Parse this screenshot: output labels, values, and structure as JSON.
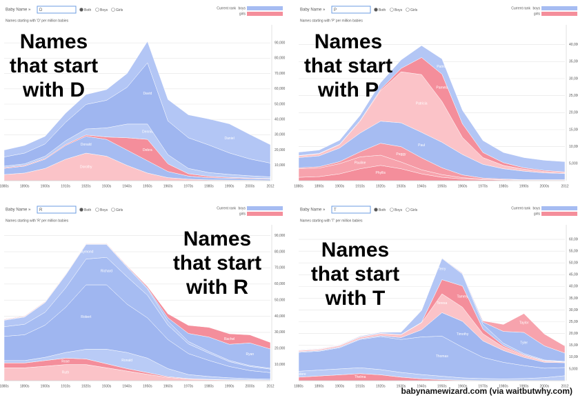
{
  "chart_data": [
    {
      "type": "stacked_area",
      "controls": {
        "label": "Baby Name »",
        "input": "D",
        "options": [
          "Both",
          "Boys",
          "Girls"
        ],
        "rank_label": "Current rank",
        "rank_rows": [
          "boys",
          "girls"
        ]
      },
      "subtitle": "Names starting with 'D' per million babies",
      "annotation": [
        "Names",
        "that start",
        "with D"
      ],
      "categories": [
        "1880s",
        "1890s",
        "1900s",
        "1910s",
        "1920s",
        "1930s",
        "1940s",
        "1950s",
        "1960s",
        "1970s",
        "1980s",
        "1990s",
        "2000s",
        "2012"
      ],
      "ylim": [
        0,
        100000
      ],
      "yticks": [
        {
          "value": 10000,
          "label": "10,000"
        },
        {
          "value": 20000,
          "label": "20,000"
        },
        {
          "value": 30000,
          "label": "30,000"
        },
        {
          "value": 40000,
          "label": "40,000"
        },
        {
          "value": 50000,
          "label": "50,000"
        },
        {
          "value": 60000,
          "label": "60,000"
        },
        {
          "value": 70000,
          "label": "70,000"
        },
        {
          "value": 80000,
          "label": "80,000"
        },
        {
          "value": 90000,
          "label": "90,000"
        }
      ],
      "grid": true,
      "series": [
        {
          "name": "Dorothy",
          "color": "#fbc3c8",
          "values": [
            4000,
            5000,
            8000,
            14000,
            18000,
            16000,
            10000,
            5000,
            2000,
            1000,
            500,
            400,
            300,
            200
          ]
        },
        {
          "name": "Donald",
          "color": "#a6bcf2",
          "values": [
            4000,
            4500,
            6000,
            9000,
            11000,
            11000,
            10000,
            8000,
            4000,
            2000,
            1500,
            1200,
            1000,
            800
          ]
        },
        {
          "name": "Debra",
          "color": "#f48e9b",
          "values": [
            500,
            500,
            500,
            600,
            800,
            1500,
            8000,
            14000,
            5000,
            1500,
            800,
            500,
            400,
            300
          ]
        },
        {
          "name": "Dennis",
          "color": "#b9cbf6",
          "values": [
            1000,
            1000,
            1500,
            2500,
            4000,
            6000,
            9000,
            10000,
            6000,
            3500,
            2500,
            2000,
            1500,
            1200
          ]
        },
        {
          "name": "David",
          "color": "#9fb6f0",
          "values": [
            6000,
            7000,
            8000,
            12000,
            16000,
            18000,
            24000,
            40000,
            22000,
            20000,
            18000,
            14000,
            11000,
            9000
          ]
        },
        {
          "name": "Daniel",
          "color": "#b3c6f5",
          "values": [
            4500,
            5000,
            5000,
            6000,
            6500,
            7000,
            9000,
            14000,
            14000,
            15000,
            17000,
            19000,
            16000,
            12000
          ]
        }
      ]
    },
    {
      "type": "stacked_area",
      "controls": {
        "label": "Baby Name »",
        "input": "P",
        "options": [
          "Both",
          "Boys",
          "Girls"
        ],
        "rank_label": "Current rank",
        "rank_rows": [
          "boys",
          "girls"
        ]
      },
      "subtitle": "Names starting with 'P' per million babies",
      "annotation": [
        "Names",
        "that start",
        "with P"
      ],
      "categories": [
        "1880s",
        "1890s",
        "1900s",
        "1910s",
        "1920s",
        "1930s",
        "1940s",
        "1950s",
        "1960s",
        "1970s",
        "1980s",
        "1990s",
        "2000s",
        "2012"
      ],
      "ylim": [
        0,
        45000
      ],
      "yticks": [
        {
          "value": 5000,
          "label": "5,000"
        },
        {
          "value": 10000,
          "label": "10,000"
        },
        {
          "value": 15000,
          "label": "15,000"
        },
        {
          "value": 20000,
          "label": "20,000"
        },
        {
          "value": 25000,
          "label": "25,000"
        },
        {
          "value": 30000,
          "label": "30,000"
        },
        {
          "value": 35000,
          "label": "35,000"
        },
        {
          "value": 40000,
          "label": "40,000"
        }
      ],
      "grid": true,
      "series": [
        {
          "name": "Phyllis",
          "color": "#f48e9b",
          "values": [
            1000,
            1200,
            2000,
            3500,
            4500,
            3500,
            2000,
            1000,
            500,
            300,
            200,
            100,
            100,
            100
          ]
        },
        {
          "name": "Pauline",
          "color": "#f7a3ad",
          "values": [
            2500,
            2500,
            3000,
            3500,
            3000,
            2000,
            1200,
            800,
            400,
            200,
            100,
            100,
            100,
            100
          ]
        },
        {
          "name": "Peggy",
          "color": "#f59aa5",
          "values": [
            300,
            400,
            600,
            1500,
            3500,
            4500,
            3500,
            2000,
            800,
            300,
            200,
            100,
            100,
            100
          ]
        },
        {
          "name": "Paul",
          "color": "#a6bcf2",
          "values": [
            3000,
            3200,
            4000,
            5500,
            6500,
            7000,
            7500,
            7500,
            6000,
            4000,
            3000,
            2500,
            2000,
            1800
          ]
        },
        {
          "name": "Patricia",
          "color": "#fbc3c8",
          "values": [
            500,
            600,
            1000,
            3500,
            9000,
            15000,
            17000,
            12000,
            5000,
            2000,
            1000,
            600,
            400,
            300
          ]
        },
        {
          "name": "Pamela",
          "color": "#f48e9b",
          "values": [
            100,
            100,
            100,
            200,
            300,
            1000,
            5000,
            8000,
            4000,
            1500,
            800,
            400,
            300,
            200
          ]
        },
        {
          "name": "Patrick",
          "color": "#b3c6f5",
          "values": [
            1000,
            1000,
            1200,
            1500,
            2000,
            2500,
            3500,
            4500,
            4000,
            3500,
            3000,
            3000,
            3000,
            3000
          ]
        }
      ]
    },
    {
      "type": "stacked_area",
      "controls": {
        "label": "Baby Name »",
        "input": "R",
        "options": [
          "Both",
          "Boys",
          "Girls"
        ],
        "rank_label": "Current rank",
        "rank_rows": [
          "boys",
          "girls"
        ]
      },
      "subtitle": "Names starting with 'R' per million babies",
      "annotation": [
        "Names",
        "that start",
        "with R"
      ],
      "categories": [
        "1880s",
        "1890s",
        "1900s",
        "1910s",
        "1920s",
        "1930s",
        "1940s",
        "1950s",
        "1960s",
        "1970s",
        "1980s",
        "1990s",
        "2000s",
        "2012"
      ],
      "ylim": [
        0,
        95000
      ],
      "yticks": [
        {
          "value": 10000,
          "label": "10,000"
        },
        {
          "value": 20000,
          "label": "20,000"
        },
        {
          "value": 30000,
          "label": "30,000"
        },
        {
          "value": 40000,
          "label": "40,000"
        },
        {
          "value": 50000,
          "label": "50,000"
        },
        {
          "value": 60000,
          "label": "60,000"
        },
        {
          "value": 70000,
          "label": "70,000"
        },
        {
          "value": 80000,
          "label": "80,000"
        },
        {
          "value": 90000,
          "label": "90,000"
        }
      ],
      "grid": true,
      "series": [
        {
          "name": "Ruth",
          "color": "#fbc3c8",
          "values": [
            8000,
            8000,
            9000,
            10000,
            10000,
            8000,
            6000,
            4000,
            2000,
            1000,
            600,
            400,
            300,
            200
          ]
        },
        {
          "name": "Rose",
          "color": "#f48e9b",
          "values": [
            3000,
            3000,
            3500,
            4000,
            3500,
            2500,
            1500,
            1000,
            500,
            300,
            200,
            200,
            200,
            200
          ]
        },
        {
          "name": "Ronald",
          "color": "#b9cbf6",
          "values": [
            1500,
            1500,
            2000,
            3500,
            6000,
            9000,
            10000,
            9000,
            5000,
            2500,
            1800,
            1200,
            800,
            600
          ]
        },
        {
          "name": "Robert",
          "color": "#9fb6f0",
          "values": [
            15000,
            16000,
            20000,
            28000,
            40000,
            40000,
            30000,
            25000,
            18000,
            13000,
            10000,
            7000,
            5000,
            4000
          ]
        },
        {
          "name": "Richard",
          "color": "#a6bcf2",
          "values": [
            6000,
            6500,
            8000,
            12000,
            16000,
            17000,
            17000,
            14000,
            9000,
            6000,
            4500,
            3000,
            2500,
            2200
          ]
        },
        {
          "name": "Raymond",
          "color": "#b3c6f5",
          "values": [
            4000,
            4500,
            6000,
            8000,
            9000,
            8000,
            6000,
            4000,
            2500,
            1500,
            1000,
            800,
            600,
            500
          ]
        },
        {
          "name": "Ryan",
          "color": "#a6bcf2",
          "values": [
            300,
            300,
            300,
            300,
            300,
            300,
            400,
            600,
            2000,
            5000,
            9000,
            10000,
            14000,
            12000
          ]
        },
        {
          "name": "Rachel",
          "color": "#f48e9b",
          "values": [
            300,
            300,
            300,
            300,
            300,
            300,
            400,
            800,
            2500,
            5000,
            6000,
            6500,
            5000,
            4000
          ]
        }
      ]
    },
    {
      "type": "stacked_area",
      "controls": {
        "label": "Baby Name »",
        "input": "T",
        "options": [
          "Both",
          "Boys",
          "Girls"
        ],
        "rank_label": "Current rank",
        "rank_rows": [
          "boys",
          "girls"
        ]
      },
      "subtitle": "Names starting with 'T' per million babies",
      "annotation": [
        "Names",
        "that start",
        "with T"
      ],
      "categories": [
        "1880s",
        "1890s",
        "1900s",
        "1910s",
        "1920s",
        "1930s",
        "1940s",
        "1950s",
        "1960s",
        "1970s",
        "1980s",
        "1990s",
        "2000s",
        "2012"
      ],
      "ylim": [
        0,
        65000
      ],
      "yticks": [
        {
          "value": 5000,
          "label": "5,000"
        },
        {
          "value": 10000,
          "label": "10,000"
        },
        {
          "value": 15000,
          "label": "15,000"
        },
        {
          "value": 20000,
          "label": "20,000"
        },
        {
          "value": 25000,
          "label": "25,000"
        },
        {
          "value": 30000,
          "label": "30,000"
        },
        {
          "value": 35000,
          "label": "35,000"
        },
        {
          "value": 40000,
          "label": "40,000"
        },
        {
          "value": 45000,
          "label": "45,000"
        },
        {
          "value": 50000,
          "label": "50,000"
        },
        {
          "value": 55000,
          "label": "55,000"
        },
        {
          "value": 60000,
          "label": "60,000"
        }
      ],
      "grid": true,
      "series": [
        {
          "name": "Thelma",
          "color": "#f48e9b",
          "values": [
            1500,
            2000,
            2500,
            3000,
            2500,
            1500,
            800,
            400,
            200,
            100,
            100,
            100,
            100,
            100
          ]
        },
        {
          "name": "Theodore",
          "color": "#b9cbf6",
          "values": [
            2500,
            2500,
            2500,
            2500,
            2200,
            2000,
            1800,
            1500,
            1000,
            800,
            700,
            800,
            1200,
            2000
          ]
        },
        {
          "name": "Thomas",
          "color": "#a6bcf2",
          "values": [
            8000,
            8000,
            9000,
            12000,
            14000,
            14000,
            16000,
            17000,
            13000,
            9000,
            7000,
            5500,
            4000,
            3500
          ]
        },
        {
          "name": "Timothy",
          "color": "#9fb6f0",
          "values": [
            300,
            300,
            300,
            300,
            400,
            800,
            3000,
            10000,
            11000,
            7000,
            5000,
            3500,
            2500,
            2000
          ]
        },
        {
          "name": "Teresa",
          "color": "#fbc3c8",
          "values": [
            500,
            500,
            600,
            700,
            900,
            1200,
            3000,
            8000,
            6000,
            3000,
            1500,
            800,
            500,
            300
          ]
        },
        {
          "name": "Tammy",
          "color": "#f48e9b",
          "values": [
            100,
            100,
            100,
            100,
            100,
            100,
            200,
            6000,
            9000,
            2000,
            600,
            300,
            200,
            100
          ]
        },
        {
          "name": "Terry",
          "color": "#b3c6f5",
          "values": [
            200,
            200,
            200,
            300,
            400,
            1000,
            5000,
            9000,
            5000,
            2000,
            1000,
            500,
            300,
            200
          ]
        },
        {
          "name": "Tyler",
          "color": "#a6bcf2",
          "values": [
            100,
            100,
            100,
            100,
            100,
            100,
            100,
            200,
            300,
            1000,
            5000,
            9000,
            6000,
            3500
          ]
        },
        {
          "name": "Taylor",
          "color": "#f7a3ad",
          "values": [
            100,
            100,
            100,
            100,
            100,
            100,
            100,
            100,
            200,
            500,
            3000,
            8000,
            5000,
            3000
          ]
        }
      ]
    }
  ],
  "footer": "babynamewizard.com (via waitbutwhy.com)"
}
